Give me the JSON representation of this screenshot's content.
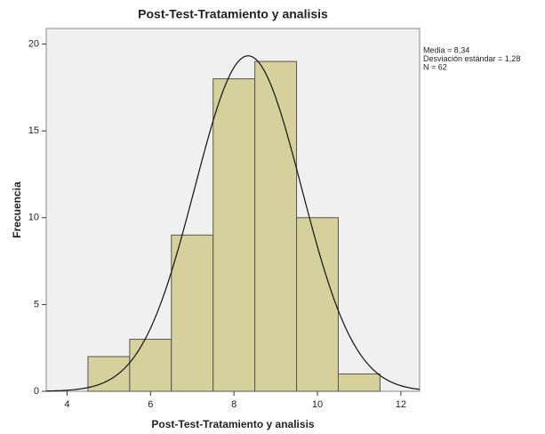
{
  "chart_data": {
    "type": "histogram",
    "title": "Post-Test-Tratamiento y analisis",
    "xlabel": "Post-Test-Tratamiento y analisis",
    "ylabel": "Frecuencia",
    "bins": [
      4.5,
      5.5,
      6.5,
      7.5,
      8.5,
      9.5,
      10.5,
      11.5
    ],
    "values": [
      2,
      3,
      9,
      18,
      19,
      10,
      1
    ],
    "color": "#d6d19c",
    "xlim": [
      3.5,
      12.45
    ],
    "xticks": [
      4,
      6,
      8,
      10,
      12
    ],
    "ylim": [
      0,
      20.9
    ],
    "yticks": [
      0,
      5,
      10,
      15,
      20
    ],
    "annotations": [
      "Media = 8,34",
      "Desviación estándar = 1,28",
      "N = 62"
    ],
    "normal_curve": {
      "mean": 8.34,
      "sd": 1.28,
      "n": 62
    }
  }
}
